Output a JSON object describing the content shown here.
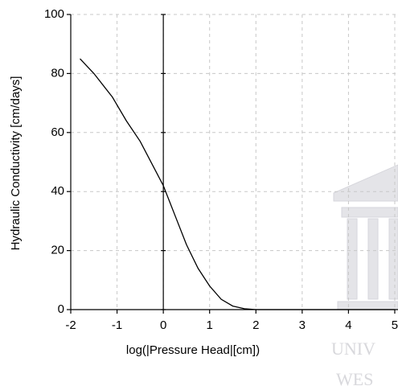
{
  "chart_data": {
    "type": "line",
    "x_label": "log(|Pressure Head|[cm])",
    "y_label": "Hydraulic Conductivity [cm/days]",
    "x": [
      -1.8,
      -1.5,
      -1.1,
      -0.8,
      -0.5,
      -0.2,
      0,
      0.25,
      0.5,
      0.75,
      1,
      1.25,
      1.5,
      1.75,
      2,
      3,
      4,
      5
    ],
    "series": [
      {
        "color": "#000000",
        "values": [
          85,
          80,
          72,
          64,
          57,
          48,
          42,
          32,
          22,
          14,
          8,
          3.5,
          1.2,
          0.3,
          0,
          0,
          0,
          0
        ]
      }
    ],
    "xlim": [
      -2,
      5.07
    ],
    "ylim": [
      0,
      100
    ],
    "xticks": [
      -2,
      -1,
      0,
      1,
      2,
      3,
      4,
      5
    ],
    "yticks": [
      0,
      20,
      40,
      60,
      80,
      100
    ],
    "grid": true
  },
  "watermark": [
    "UNIV",
    "WES"
  ]
}
